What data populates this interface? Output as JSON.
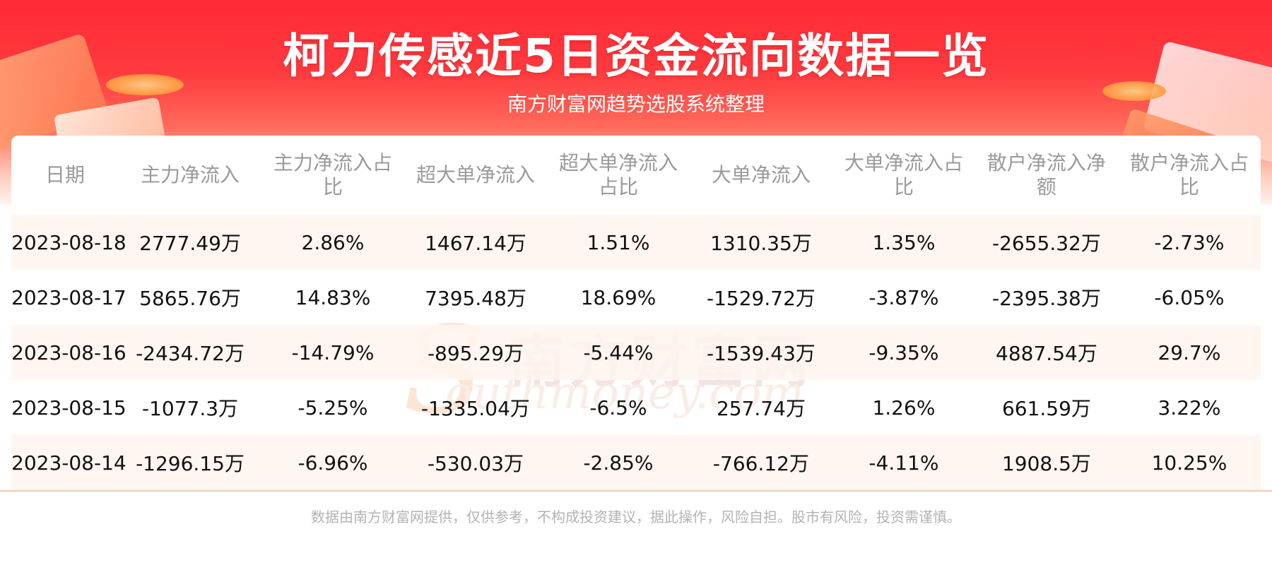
{
  "header": {
    "title": "柯力传感近5日资金流向数据一览",
    "subtitle": "南方财富网趋势选股系统整理"
  },
  "watermark": {
    "cn": "南方财富网",
    "en": "outhmoney.com",
    "s": "S"
  },
  "table": {
    "headers": [
      "日期",
      "主力净流入",
      "主力净流入占比",
      "超大单净流入",
      "超大单净流入占比",
      "大单净流入",
      "大单净流入占比",
      "散户净流入净额",
      "散户净流入占比"
    ],
    "rows": [
      [
        "2023-08-18",
        "2777.49万",
        "2.86%",
        "1467.14万",
        "1.51%",
        "1310.35万",
        "1.35%",
        "-2655.32万",
        "-2.73%"
      ],
      [
        "2023-08-17",
        "5865.76万",
        "14.83%",
        "7395.48万",
        "18.69%",
        "-1529.72万",
        "-3.87%",
        "-2395.38万",
        "-6.05%"
      ],
      [
        "2023-08-16",
        "-2434.72万",
        "-14.79%",
        "-895.29万",
        "-5.44%",
        "-1539.43万",
        "-9.35%",
        "4887.54万",
        "29.7%"
      ],
      [
        "2023-08-15",
        "-1077.3万",
        "-5.25%",
        "-1335.04万",
        "-6.5%",
        "257.74万",
        "1.26%",
        "661.59万",
        "3.22%"
      ],
      [
        "2023-08-14",
        "-1296.15万",
        "-6.96%",
        "-530.03万",
        "-2.85%",
        "-766.12万",
        "-4.11%",
        "1908.5万",
        "10.25%"
      ]
    ]
  },
  "footer": {
    "disclaimer": "数据由南方财富网提供，仅供参考，不构成投资建议，据此操作，风险自担。股市有风险，投资需谨慎。"
  }
}
